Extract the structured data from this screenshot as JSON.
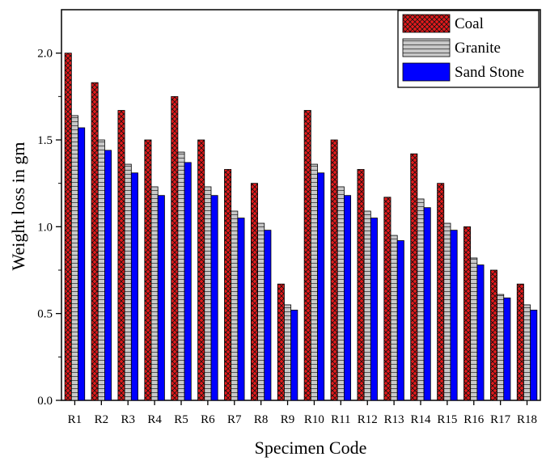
{
  "chart_data": {
    "type": "bar",
    "title": "",
    "xlabel": "Specimen Code",
    "ylabel": "Weight loss in gm",
    "ylim": [
      0,
      2.25
    ],
    "yticks": [
      0.0,
      0.5,
      1.0,
      1.5,
      2.0
    ],
    "ytick_labels": [
      "0.0",
      "0.5",
      "1.0",
      "1.5",
      "2.0"
    ],
    "grid": false,
    "legend_position": "top-right",
    "categories": [
      "R1",
      "R2",
      "R3",
      "R4",
      "R5",
      "R6",
      "R7",
      "R8",
      "R9",
      "R10",
      "R11",
      "R12",
      "R13",
      "R14",
      "R15",
      "R16",
      "R17",
      "R18"
    ],
    "series": [
      {
        "name": "Coal",
        "color": "#e31a1c",
        "pattern": "crosshatch",
        "values": [
          2.0,
          1.83,
          1.67,
          1.5,
          1.75,
          1.5,
          1.33,
          1.25,
          0.67,
          1.67,
          1.5,
          1.33,
          1.17,
          1.42,
          1.25,
          1.0,
          0.75,
          0.67
        ]
      },
      {
        "name": "Granite",
        "color": "#c8c8c8",
        "pattern": "horizontal",
        "values": [
          1.64,
          1.5,
          1.36,
          1.23,
          1.43,
          1.23,
          1.09,
          1.02,
          0.55,
          1.36,
          1.23,
          1.09,
          0.95,
          1.16,
          1.02,
          0.82,
          0.61,
          0.55
        ]
      },
      {
        "name": "Sand Stone",
        "color": "#0000ff",
        "pattern": "solid",
        "values": [
          1.57,
          1.44,
          1.31,
          1.18,
          1.37,
          1.18,
          1.05,
          0.98,
          0.52,
          1.31,
          1.18,
          1.05,
          0.92,
          1.11,
          0.98,
          0.78,
          0.59,
          0.52
        ]
      }
    ]
  }
}
